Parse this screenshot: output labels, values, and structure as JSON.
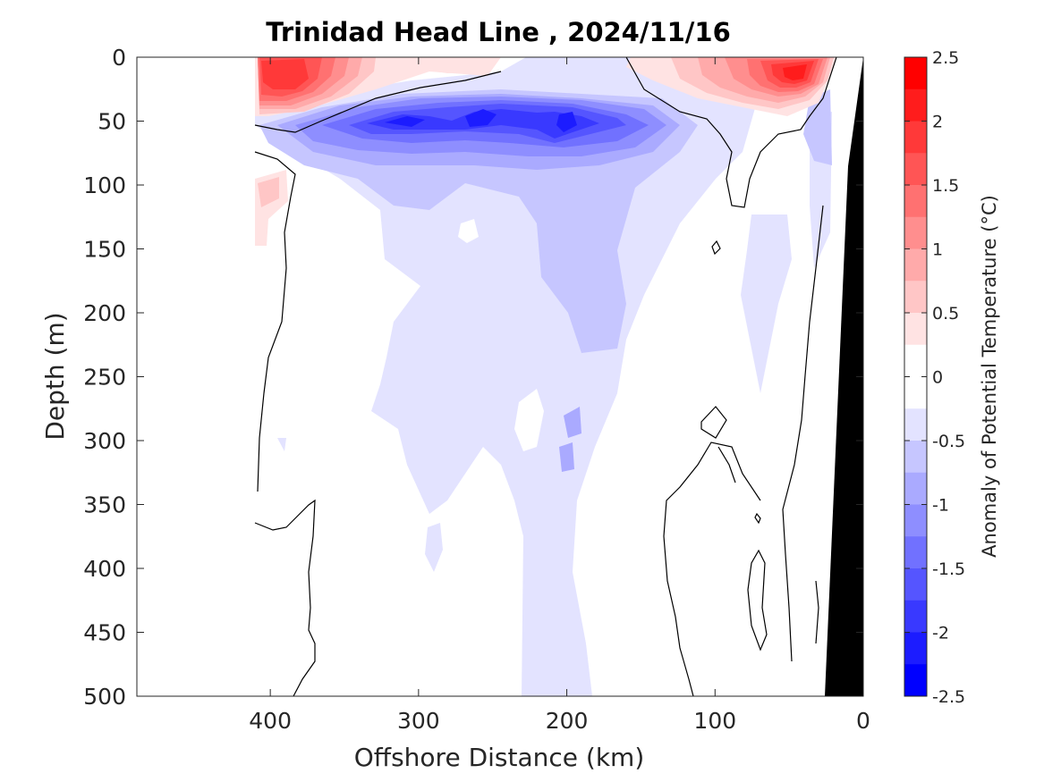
{
  "chart_data": {
    "type": "heatmap",
    "title": "Trinidad Head Line , 2024/11/16",
    "xlabel": "Offshore Distance (km)",
    "ylabel": "Depth (m)",
    "xlim": [
      490,
      0
    ],
    "ylim": [
      500,
      0
    ],
    "x_reversed": true,
    "y_reversed": true,
    "x_ticks": [
      400,
      300,
      200,
      100,
      0
    ],
    "x_tick_labels": [
      "400",
      "300",
      "200",
      "100",
      "0"
    ],
    "y_ticks": [
      0,
      50,
      100,
      150,
      200,
      250,
      300,
      350,
      400,
      450,
      500
    ],
    "y_tick_labels": [
      "0",
      "50",
      "100",
      "150",
      "200",
      "250",
      "300",
      "350",
      "400",
      "450",
      "500"
    ],
    "grid": false,
    "colorbar": {
      "label": "Anomaly of Potential Temperature (°C)",
      "range": [
        -2.5,
        2.5
      ],
      "ticks": [
        2.5,
        2,
        1.5,
        1,
        0.5,
        0,
        -0.5,
        -1,
        -1.5,
        -2,
        -2.5
      ],
      "tick_labels": [
        "2.5",
        "2",
        "1.5",
        "1",
        "0.5",
        "0",
        "-0.5",
        "-1",
        "-1.5",
        "-2",
        "-2.5"
      ],
      "levels": [
        {
          "from": 2.25,
          "to": 2.5,
          "color": "#ff0000"
        },
        {
          "from": 2.0,
          "to": 2.25,
          "color": "#ff1c1c"
        },
        {
          "from": 1.75,
          "to": 2.0,
          "color": "#ff3939"
        },
        {
          "from": 1.5,
          "to": 1.75,
          "color": "#ff5555"
        },
        {
          "from": 1.25,
          "to": 1.5,
          "color": "#ff7171"
        },
        {
          "from": 1.0,
          "to": 1.25,
          "color": "#ff8e8e"
        },
        {
          "from": 0.75,
          "to": 1.0,
          "color": "#ffaaaa"
        },
        {
          "from": 0.5,
          "to": 0.75,
          "color": "#ffc6c6"
        },
        {
          "from": 0.25,
          "to": 0.5,
          "color": "#ffe3e3"
        },
        {
          "from": 0.0,
          "to": 0.25,
          "color": "#ffffff"
        },
        {
          "from": -0.25,
          "to": 0.0,
          "color": "#ffffff"
        },
        {
          "from": -0.5,
          "to": -0.25,
          "color": "#e3e3ff"
        },
        {
          "from": -0.75,
          "to": -0.5,
          "color": "#c6c6ff"
        },
        {
          "from": -1.0,
          "to": -0.75,
          "color": "#aaaaff"
        },
        {
          "from": -1.25,
          "to": -1.0,
          "color": "#8e8eff"
        },
        {
          "from": -1.5,
          "to": -1.25,
          "color": "#7171ff"
        },
        {
          "from": -1.75,
          "to": -1.5,
          "color": "#5555ff"
        },
        {
          "from": -2.0,
          "to": -1.75,
          "color": "#3939ff"
        },
        {
          "from": -2.25,
          "to": -2.0,
          "color": "#1c1cff"
        },
        {
          "from": -2.5,
          "to": -2.25,
          "color": "#0000ff"
        }
      ]
    },
    "features": [
      {
        "name": "warm-nearshore-core",
        "x": 45,
        "depth": 12,
        "anomaly": 2.1
      },
      {
        "name": "warm-offshore-core",
        "x": 395,
        "depth": 25,
        "anomaly": 1.9
      },
      {
        "name": "cold-core-310km",
        "x": 310,
        "depth": 52,
        "anomaly": -2.0
      },
      {
        "name": "cold-core-255km",
        "x": 255,
        "depth": 48,
        "anomaly": -2.2
      },
      {
        "name": "cold-core-200km",
        "x": 200,
        "depth": 55,
        "anomaly": -1.9
      }
    ],
    "bathymetry_color": "#000000"
  }
}
